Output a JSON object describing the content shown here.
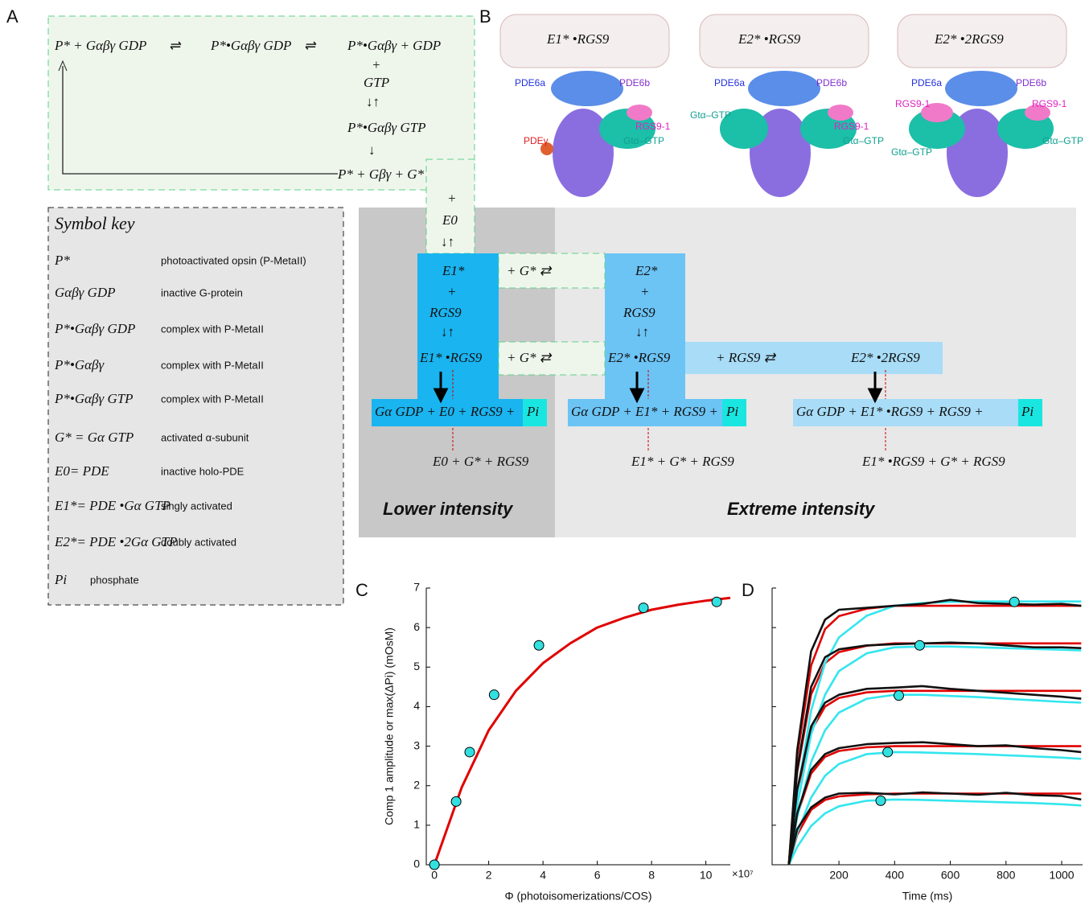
{
  "panel_labels": [
    "A",
    "B",
    "C",
    "D"
  ],
  "scheme": {
    "items": [
      "P* + Gαβγ GDP",
      "⇌",
      "P*•Gαβγ GDP",
      "⇌",
      "P*•Gαβγ + GDP",
      "+",
      "GTP",
      "↓↑",
      "P*•Gαβγ GTP",
      "↓",
      "P* + Gβγ + G*",
      "+",
      "E0",
      "↓↑",
      "E1*",
      "+",
      "RGS9",
      "↓↑",
      "E1* •RGS9",
      "+ G* ⇄",
      "+ G* ⇄",
      "E2*",
      "+",
      "RGS9",
      "↓↑",
      "E2* •RGS9",
      "+    RGS9   ⇄",
      "E2* •2RGS9",
      "Gα GDP + E0 + RGS9 +",
      "Pi",
      "Gα GDP + E1* + RGS9 +",
      "Pi",
      "Gα GDP +  E1* •RGS9 + RGS9 +",
      "Pi",
      "E0 + G* + RGS9",
      "E1* + G* + RGS9",
      "E1* •RGS9 + G* + RGS9"
    ],
    "intensity_labels": [
      "Lower intensity",
      "Extreme intensity"
    ]
  },
  "symbol_key": {
    "title": "Symbol key",
    "entries": [
      {
        "symbol": "P*",
        "description": "photoactivated opsin (P-MetaII)"
      },
      {
        "symbol": "Gαβγ GDP",
        "description": "inactive G-protein"
      },
      {
        "symbol": "P*•Gαβγ GDP",
        "description": "complex with P-MetaII"
      },
      {
        "symbol": "P*•Gαβγ",
        "description": "complex with P-MetaII"
      },
      {
        "symbol": "P*•Gαβγ GTP",
        "description": "complex with P-MetaII"
      },
      {
        "symbol": "G* = Gα GTP",
        "description": "activated α-subunit"
      },
      {
        "symbol": "E0= PDE",
        "description": "inactive holo-PDE"
      },
      {
        "symbol": "E1*= PDE •Gα GTP",
        "description": "singly activated"
      },
      {
        "symbol": "E2*= PDE •2Gα GTP",
        "description": "doubly activated"
      },
      {
        "symbol": "Pi",
        "description": "phosphate"
      }
    ]
  },
  "structures": [
    {
      "title": "E1* •RGS9",
      "labels": [
        "PDE6a",
        "PDE6b",
        "RGS9-1",
        "PDEγ",
        "Gtα–GTP"
      ]
    },
    {
      "title": "E2* •RGS9",
      "labels": [
        "PDE6a",
        "PDE6b",
        "RGS9-1",
        "Gtα–GTP",
        "Gtα–GTP"
      ]
    },
    {
      "title": "E2* •2RGS9",
      "labels": [
        "PDE6a",
        "PDE6b",
        "RGS9-1",
        "RGS9-1",
        "Gtα–GTP",
        "Gtα–GTP"
      ]
    }
  ],
  "chart_data": [
    {
      "type": "scatter",
      "y_label": "Comp 1 amplitude or max(ΔPi) (mOsM)",
      "x_label": "Φ (photoisomerizations/COS)",
      "x_multiplier": "×10⁷",
      "xlim": [
        -0.3,
        10.9
      ],
      "ylim": [
        0,
        7
      ],
      "xticks": [
        0,
        2,
        4,
        6,
        8,
        10
      ],
      "yticks": [
        0,
        1,
        2,
        3,
        4,
        5,
        6,
        7
      ],
      "series": [
        {
          "style": "line",
          "color": "#e00000",
          "x": [
            0,
            1,
            2,
            3,
            4,
            5,
            6,
            7,
            8,
            9,
            10,
            10.9
          ],
          "values": [
            0,
            1.95,
            3.4,
            4.4,
            5.1,
            5.6,
            6.0,
            6.25,
            6.45,
            6.58,
            6.68,
            6.75
          ]
        },
        {
          "style": "marker",
          "color": "#33e0e0",
          "x": [
            0,
            0.8,
            1.3,
            2.2,
            3.85,
            7.7,
            10.4
          ],
          "values": [
            0,
            1.6,
            2.85,
            4.3,
            5.55,
            6.5,
            6.65
          ]
        }
      ]
    },
    {
      "type": "line",
      "x_label": "Time (ms)",
      "xlim": [
        -40,
        1075
      ],
      "ylim": [
        0,
        7
      ],
      "xticks": [
        200,
        400,
        600,
        800,
        1000
      ],
      "yticks": [
        0,
        1,
        2,
        3,
        4,
        5,
        6,
        7
      ],
      "ytick_labels": false,
      "x": [
        20,
        50,
        100,
        150,
        200,
        300,
        400,
        500,
        600,
        700,
        800,
        900,
        1000,
        1070
      ],
      "series": [
        {
          "style": "line",
          "color": "#e00000",
          "values": [
            0,
            0.76,
            1.39,
            1.64,
            1.73,
            1.78,
            1.8,
            1.8,
            1.8,
            1.8,
            1.8,
            1.8,
            1.8,
            1.8
          ]
        },
        {
          "style": "line",
          "color": "#e00000",
          "values": [
            0,
            1.26,
            2.31,
            2.73,
            2.88,
            2.97,
            3,
            3,
            3,
            3,
            3,
            3,
            3,
            3
          ]
        },
        {
          "style": "line",
          "color": "#e00000",
          "values": [
            0,
            1.85,
            3.39,
            4,
            4.22,
            4.36,
            4.4,
            4.4,
            4.4,
            4.4,
            4.4,
            4.4,
            4.4,
            4.4
          ]
        },
        {
          "style": "line",
          "color": "#e00000",
          "values": [
            0,
            2.35,
            4.31,
            5.1,
            5.38,
            5.54,
            5.6,
            5.6,
            5.6,
            5.6,
            5.6,
            5.6,
            5.6,
            5.6
          ]
        },
        {
          "style": "line",
          "color": "#e00000",
          "values": [
            0,
            2.75,
            5.04,
            5.96,
            6.29,
            6.48,
            6.55,
            6.55,
            6.55,
            6.55,
            6.55,
            6.55,
            6.55,
            6.55
          ]
        },
        {
          "style": "line",
          "color": "#33e6ee",
          "values": [
            0,
            0.45,
            0.98,
            1.3,
            1.48,
            1.62,
            1.65,
            1.64,
            1.62,
            1.6,
            1.58,
            1.56,
            1.53,
            1.5
          ]
        },
        {
          "style": "line",
          "color": "#33e6ee",
          "values": [
            0,
            0.8,
            1.7,
            2.25,
            2.55,
            2.8,
            2.85,
            2.84,
            2.82,
            2.8,
            2.77,
            2.74,
            2.71,
            2.68
          ]
        },
        {
          "style": "line",
          "color": "#33e6ee",
          "values": [
            0,
            1.2,
            2.6,
            3.4,
            3.85,
            4.2,
            4.3,
            4.3,
            4.27,
            4.24,
            4.2,
            4.16,
            4.12,
            4.1
          ]
        },
        {
          "style": "line",
          "color": "#33e6ee",
          "values": [
            0,
            1.5,
            3.3,
            4.3,
            4.9,
            5.35,
            5.5,
            5.52,
            5.52,
            5.5,
            5.48,
            5.46,
            5.44,
            5.42
          ]
        },
        {
          "style": "line",
          "color": "#33e6ee",
          "values": [
            0,
            1.8,
            3.9,
            5.1,
            5.75,
            6.3,
            6.55,
            6.62,
            6.65,
            6.66,
            6.66,
            6.66,
            6.66,
            6.66
          ]
        },
        {
          "style": "line",
          "color": "#111111",
          "values": [
            0,
            0.9,
            1.45,
            1.7,
            1.8,
            1.82,
            1.78,
            1.83,
            1.8,
            1.77,
            1.82,
            1.76,
            1.74,
            1.65
          ]
        },
        {
          "style": "line",
          "color": "#111111",
          "values": [
            0,
            1.3,
            2.4,
            2.8,
            2.95,
            3.05,
            3.08,
            3.1,
            3.05,
            3,
            3.02,
            2.95,
            2.9,
            2.85
          ]
        },
        {
          "style": "line",
          "color": "#111111",
          "values": [
            0,
            1.9,
            3.5,
            4.1,
            4.3,
            4.45,
            4.48,
            4.52,
            4.45,
            4.4,
            4.35,
            4.3,
            4.25,
            4.2
          ]
        },
        {
          "style": "line",
          "color": "#111111",
          "values": [
            0,
            2.4,
            4.5,
            5.25,
            5.45,
            5.55,
            5.58,
            5.6,
            5.62,
            5.6,
            5.55,
            5.5,
            5.5,
            5.48
          ]
        },
        {
          "style": "line",
          "color": "#111111",
          "values": [
            0,
            2.9,
            5.4,
            6.2,
            6.45,
            6.5,
            6.55,
            6.6,
            6.7,
            6.62,
            6.6,
            6.58,
            6.6,
            6.55
          ]
        },
        {
          "style": "marker",
          "color": "#33e0e0",
          "x": [
            350,
            375,
            415,
            490,
            830
          ],
          "values": [
            1.62,
            2.85,
            4.28,
            5.55,
            6.65
          ]
        }
      ]
    }
  ]
}
